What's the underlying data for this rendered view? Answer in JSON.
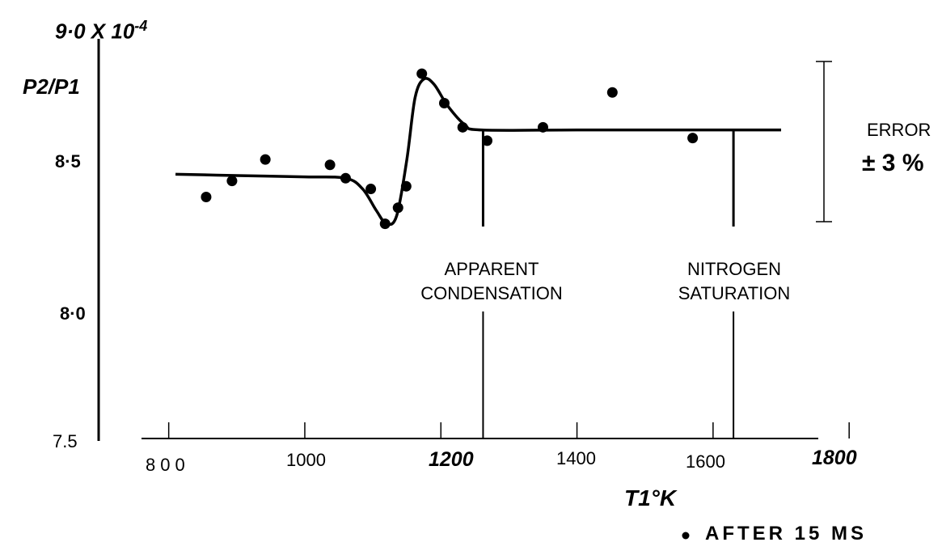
{
  "chart_data": {
    "type": "scatter",
    "y_scale_label": "9·0 X 10",
    "y_scale_exponent": "-4",
    "ylabel": "P2/P1",
    "xlabel": "T1°K",
    "xlim": [
      760,
      1820
    ],
    "ylim": [
      7.5,
      9.0
    ],
    "x_ticks": [
      "800",
      "1000",
      "1200",
      "1400",
      "1600",
      "1800"
    ],
    "y_ticks": [
      {
        "value": 8.5,
        "label": "8·5"
      },
      {
        "value": 8.0,
        "label": "8·0"
      },
      {
        "value": 7.5,
        "label": "7.5"
      }
    ],
    "series": [
      {
        "name": "AFTER 15 MS",
        "points": [
          {
            "x": 855,
            "y": 8.41
          },
          {
            "x": 893,
            "y": 8.47
          },
          {
            "x": 942,
            "y": 8.55
          },
          {
            "x": 1037,
            "y": 8.53
          },
          {
            "x": 1060,
            "y": 8.48
          },
          {
            "x": 1097,
            "y": 8.44
          },
          {
            "x": 1118,
            "y": 8.31
          },
          {
            "x": 1137,
            "y": 8.37
          },
          {
            "x": 1149,
            "y": 8.45
          },
          {
            "x": 1172,
            "y": 8.87
          },
          {
            "x": 1205,
            "y": 8.76
          },
          {
            "x": 1232,
            "y": 8.67
          },
          {
            "x": 1268,
            "y": 8.62
          },
          {
            "x": 1350,
            "y": 8.67
          },
          {
            "x": 1452,
            "y": 8.8
          },
          {
            "x": 1570,
            "y": 8.63
          }
        ]
      }
    ],
    "fit_curve": [
      [
        810,
        8.495
      ],
      [
        900,
        8.49
      ],
      [
        1000,
        8.485
      ],
      [
        1060,
        8.48
      ],
      [
        1085,
        8.44
      ],
      [
        1105,
        8.36
      ],
      [
        1120,
        8.31
      ],
      [
        1135,
        8.34
      ],
      [
        1150,
        8.55
      ],
      [
        1162,
        8.78
      ],
      [
        1175,
        8.85
      ],
      [
        1190,
        8.83
      ],
      [
        1210,
        8.75
      ],
      [
        1235,
        8.68
      ],
      [
        1260,
        8.66
      ],
      [
        1400,
        8.66
      ],
      [
        1600,
        8.66
      ],
      [
        1700,
        8.66
      ]
    ],
    "markers": [
      {
        "x": 1262,
        "label_line1": "APPARENT",
        "label_line2": "CONDENSATION"
      },
      {
        "x": 1630,
        "label_line1": "NITROGEN",
        "label_line2": "SATURATION"
      }
    ],
    "error_bar": {
      "label": "ERROR",
      "value": "± 3 %"
    },
    "legend_text": "AFTER 15 MS",
    "legend_placement": "bottom-right"
  }
}
